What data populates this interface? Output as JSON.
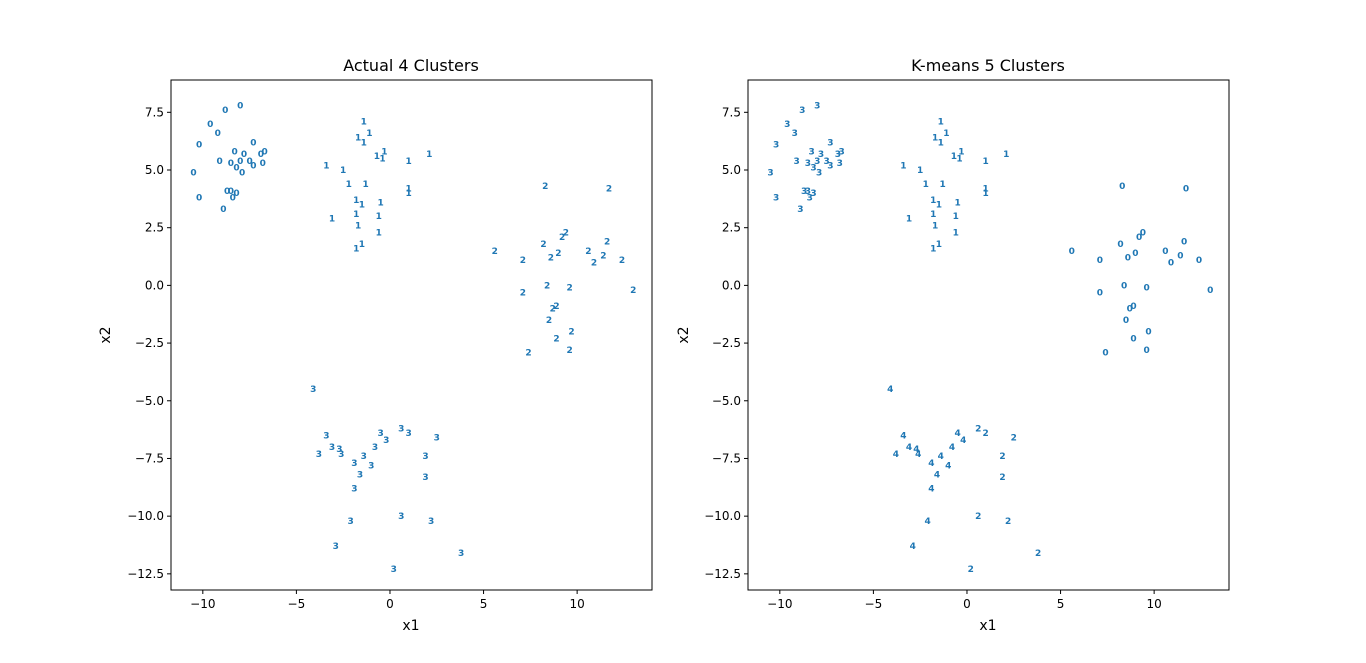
{
  "chart_data": [
    {
      "type": "scatter",
      "title": "Actual 4 Clusters",
      "xlabel": "x1",
      "ylabel": "x2",
      "xlim": [
        -11.7,
        14.0
      ],
      "ylim": [
        -13.2,
        8.9
      ],
      "xticks": [
        -10,
        -5,
        0,
        5,
        10
      ],
      "yticks": [
        7.5,
        5.0,
        2.5,
        0.0,
        -2.5,
        -5.0,
        -7.5,
        -10.0,
        -12.5
      ],
      "xtick_labels": [
        "−10",
        "−5",
        "0",
        "5",
        "10"
      ],
      "ytick_labels": [
        "7.5",
        "5.0",
        "2.5",
        "0.0",
        "−2.5",
        "−5.0",
        "−7.5",
        "−10.0",
        "−12.5"
      ],
      "marker_color": "#1f77b4",
      "points": [
        {
          "x": -8.0,
          "y": 7.8,
          "label": "0"
        },
        {
          "x": -8.8,
          "y": 7.6,
          "label": "0"
        },
        {
          "x": -9.6,
          "y": 7.0,
          "label": "0"
        },
        {
          "x": -9.2,
          "y": 6.6,
          "label": "0"
        },
        {
          "x": -7.3,
          "y": 6.2,
          "label": "0"
        },
        {
          "x": -10.2,
          "y": 6.1,
          "label": "0"
        },
        {
          "x": -8.3,
          "y": 5.8,
          "label": "0"
        },
        {
          "x": -7.8,
          "y": 5.7,
          "label": "0"
        },
        {
          "x": -6.7,
          "y": 5.8,
          "label": "0"
        },
        {
          "x": -6.9,
          "y": 5.7,
          "label": "0"
        },
        {
          "x": -9.1,
          "y": 5.4,
          "label": "0"
        },
        {
          "x": -8.5,
          "y": 5.3,
          "label": "0"
        },
        {
          "x": -8.0,
          "y": 5.4,
          "label": "0"
        },
        {
          "x": -7.5,
          "y": 5.4,
          "label": "0"
        },
        {
          "x": -7.3,
          "y": 5.2,
          "label": "0"
        },
        {
          "x": -6.8,
          "y": 5.3,
          "label": "0"
        },
        {
          "x": -8.2,
          "y": 5.1,
          "label": "0"
        },
        {
          "x": -7.9,
          "y": 4.9,
          "label": "0"
        },
        {
          "x": -10.5,
          "y": 4.9,
          "label": "0"
        },
        {
          "x": -8.7,
          "y": 4.1,
          "label": "0"
        },
        {
          "x": -8.5,
          "y": 4.1,
          "label": "0"
        },
        {
          "x": -8.2,
          "y": 4.0,
          "label": "0"
        },
        {
          "x": -8.4,
          "y": 3.8,
          "label": "0"
        },
        {
          "x": -10.2,
          "y": 3.8,
          "label": "0"
        },
        {
          "x": -8.9,
          "y": 3.3,
          "label": "0"
        },
        {
          "x": -1.4,
          "y": 7.1,
          "label": "1"
        },
        {
          "x": -1.1,
          "y": 6.6,
          "label": "1"
        },
        {
          "x": -1.7,
          "y": 6.4,
          "label": "1"
        },
        {
          "x": -1.4,
          "y": 6.2,
          "label": "1"
        },
        {
          "x": -0.3,
          "y": 5.8,
          "label": "1"
        },
        {
          "x": 2.1,
          "y": 5.7,
          "label": "1"
        },
        {
          "x": -0.7,
          "y": 5.6,
          "label": "1"
        },
        {
          "x": -0.4,
          "y": 5.5,
          "label": "1"
        },
        {
          "x": 1.0,
          "y": 5.4,
          "label": "1"
        },
        {
          "x": -3.4,
          "y": 5.2,
          "label": "1"
        },
        {
          "x": -2.5,
          "y": 5.0,
          "label": "1"
        },
        {
          "x": -2.2,
          "y": 4.4,
          "label": "1"
        },
        {
          "x": -1.3,
          "y": 4.4,
          "label": "1"
        },
        {
          "x": 1.0,
          "y": 4.2,
          "label": "1"
        },
        {
          "x": 1.0,
          "y": 4.0,
          "label": "1"
        },
        {
          "x": -1.8,
          "y": 3.7,
          "label": "1"
        },
        {
          "x": -1.5,
          "y": 3.5,
          "label": "1"
        },
        {
          "x": -0.5,
          "y": 3.6,
          "label": "1"
        },
        {
          "x": -1.8,
          "y": 3.1,
          "label": "1"
        },
        {
          "x": -0.6,
          "y": 3.0,
          "label": "1"
        },
        {
          "x": -3.1,
          "y": 2.9,
          "label": "1"
        },
        {
          "x": -1.7,
          "y": 2.6,
          "label": "1"
        },
        {
          "x": -0.6,
          "y": 2.3,
          "label": "1"
        },
        {
          "x": -1.5,
          "y": 1.8,
          "label": "1"
        },
        {
          "x": -1.8,
          "y": 1.6,
          "label": "1"
        },
        {
          "x": 8.3,
          "y": 4.3,
          "label": "2"
        },
        {
          "x": 11.7,
          "y": 4.2,
          "label": "2"
        },
        {
          "x": 9.4,
          "y": 2.3,
          "label": "2"
        },
        {
          "x": 9.2,
          "y": 2.1,
          "label": "2"
        },
        {
          "x": 11.6,
          "y": 1.9,
          "label": "2"
        },
        {
          "x": 8.2,
          "y": 1.8,
          "label": "2"
        },
        {
          "x": 5.6,
          "y": 1.5,
          "label": "2"
        },
        {
          "x": 10.6,
          "y": 1.5,
          "label": "2"
        },
        {
          "x": 9.0,
          "y": 1.4,
          "label": "2"
        },
        {
          "x": 11.4,
          "y": 1.3,
          "label": "2"
        },
        {
          "x": 8.6,
          "y": 1.2,
          "label": "2"
        },
        {
          "x": 7.1,
          "y": 1.1,
          "label": "2"
        },
        {
          "x": 10.9,
          "y": 1.0,
          "label": "2"
        },
        {
          "x": 12.4,
          "y": 1.1,
          "label": "2"
        },
        {
          "x": 8.4,
          "y": 0.0,
          "label": "2"
        },
        {
          "x": 9.6,
          "y": -0.1,
          "label": "2"
        },
        {
          "x": 13.0,
          "y": -0.2,
          "label": "2"
        },
        {
          "x": 7.1,
          "y": -0.3,
          "label": "2"
        },
        {
          "x": 8.9,
          "y": -0.9,
          "label": "2"
        },
        {
          "x": 8.7,
          "y": -1.0,
          "label": "2"
        },
        {
          "x": 8.5,
          "y": -1.5,
          "label": "2"
        },
        {
          "x": 9.7,
          "y": -2.0,
          "label": "2"
        },
        {
          "x": 8.9,
          "y": -2.3,
          "label": "2"
        },
        {
          "x": 9.6,
          "y": -2.8,
          "label": "2"
        },
        {
          "x": 7.4,
          "y": -2.9,
          "label": "2"
        },
        {
          "x": -4.1,
          "y": -4.5,
          "label": "3"
        },
        {
          "x": 0.6,
          "y": -6.2,
          "label": "3"
        },
        {
          "x": -0.5,
          "y": -6.4,
          "label": "3"
        },
        {
          "x": 1.0,
          "y": -6.4,
          "label": "3"
        },
        {
          "x": -3.4,
          "y": -6.5,
          "label": "3"
        },
        {
          "x": -0.2,
          "y": -6.7,
          "label": "3"
        },
        {
          "x": 2.5,
          "y": -6.6,
          "label": "3"
        },
        {
          "x": -0.8,
          "y": -7.0,
          "label": "3"
        },
        {
          "x": -3.1,
          "y": -7.0,
          "label": "3"
        },
        {
          "x": -2.7,
          "y": -7.1,
          "label": "3"
        },
        {
          "x": -2.6,
          "y": -7.3,
          "label": "3"
        },
        {
          "x": -3.8,
          "y": -7.3,
          "label": "3"
        },
        {
          "x": -1.4,
          "y": -7.4,
          "label": "3"
        },
        {
          "x": 1.9,
          "y": -7.4,
          "label": "3"
        },
        {
          "x": -1.9,
          "y": -7.7,
          "label": "3"
        },
        {
          "x": -1.0,
          "y": -7.8,
          "label": "3"
        },
        {
          "x": -1.6,
          "y": -8.2,
          "label": "3"
        },
        {
          "x": 1.9,
          "y": -8.3,
          "label": "3"
        },
        {
          "x": -1.9,
          "y": -8.8,
          "label": "3"
        },
        {
          "x": 0.6,
          "y": -10.0,
          "label": "3"
        },
        {
          "x": 2.2,
          "y": -10.2,
          "label": "3"
        },
        {
          "x": -2.1,
          "y": -10.2,
          "label": "3"
        },
        {
          "x": -2.9,
          "y": -11.3,
          "label": "3"
        },
        {
          "x": 3.8,
          "y": -11.6,
          "label": "3"
        },
        {
          "x": 0.2,
          "y": -12.3,
          "label": "3"
        }
      ]
    },
    {
      "type": "scatter",
      "title": "K-means 5 Clusters",
      "xlabel": "x1",
      "ylabel": "x2",
      "xlim": [
        -11.7,
        14.0
      ],
      "ylim": [
        -13.2,
        8.9
      ],
      "xticks": [
        -10,
        -5,
        0,
        5,
        10
      ],
      "yticks": [
        7.5,
        5.0,
        2.5,
        0.0,
        -2.5,
        -5.0,
        -7.5,
        -10.0,
        -12.5
      ],
      "xtick_labels": [
        "−10",
        "−5",
        "0",
        "5",
        "10"
      ],
      "ytick_labels": [
        "7.5",
        "5.0",
        "2.5",
        "0.0",
        "−2.5",
        "−5.0",
        "−7.5",
        "−10.0",
        "−12.5"
      ],
      "marker_color": "#1f77b4",
      "points": [
        {
          "x": -8.0,
          "y": 7.8,
          "label": "3"
        },
        {
          "x": -8.8,
          "y": 7.6,
          "label": "3"
        },
        {
          "x": -9.6,
          "y": 7.0,
          "label": "3"
        },
        {
          "x": -9.2,
          "y": 6.6,
          "label": "3"
        },
        {
          "x": -7.3,
          "y": 6.2,
          "label": "3"
        },
        {
          "x": -10.2,
          "y": 6.1,
          "label": "3"
        },
        {
          "x": -8.3,
          "y": 5.8,
          "label": "3"
        },
        {
          "x": -7.8,
          "y": 5.7,
          "label": "3"
        },
        {
          "x": -6.7,
          "y": 5.8,
          "label": "3"
        },
        {
          "x": -6.9,
          "y": 5.7,
          "label": "3"
        },
        {
          "x": -9.1,
          "y": 5.4,
          "label": "3"
        },
        {
          "x": -8.5,
          "y": 5.3,
          "label": "3"
        },
        {
          "x": -8.0,
          "y": 5.4,
          "label": "3"
        },
        {
          "x": -7.5,
          "y": 5.4,
          "label": "3"
        },
        {
          "x": -7.3,
          "y": 5.2,
          "label": "3"
        },
        {
          "x": -6.8,
          "y": 5.3,
          "label": "3"
        },
        {
          "x": -8.2,
          "y": 5.1,
          "label": "3"
        },
        {
          "x": -7.9,
          "y": 4.9,
          "label": "3"
        },
        {
          "x": -10.5,
          "y": 4.9,
          "label": "3"
        },
        {
          "x": -8.7,
          "y": 4.1,
          "label": "3"
        },
        {
          "x": -8.5,
          "y": 4.1,
          "label": "3"
        },
        {
          "x": -8.2,
          "y": 4.0,
          "label": "3"
        },
        {
          "x": -8.4,
          "y": 3.8,
          "label": "3"
        },
        {
          "x": -10.2,
          "y": 3.8,
          "label": "3"
        },
        {
          "x": -8.9,
          "y": 3.3,
          "label": "3"
        },
        {
          "x": -1.4,
          "y": 7.1,
          "label": "1"
        },
        {
          "x": -1.1,
          "y": 6.6,
          "label": "1"
        },
        {
          "x": -1.7,
          "y": 6.4,
          "label": "1"
        },
        {
          "x": -1.4,
          "y": 6.2,
          "label": "1"
        },
        {
          "x": -0.3,
          "y": 5.8,
          "label": "1"
        },
        {
          "x": 2.1,
          "y": 5.7,
          "label": "1"
        },
        {
          "x": -0.7,
          "y": 5.6,
          "label": "1"
        },
        {
          "x": -0.4,
          "y": 5.5,
          "label": "1"
        },
        {
          "x": 1.0,
          "y": 5.4,
          "label": "1"
        },
        {
          "x": -3.4,
          "y": 5.2,
          "label": "1"
        },
        {
          "x": -2.5,
          "y": 5.0,
          "label": "1"
        },
        {
          "x": -2.2,
          "y": 4.4,
          "label": "1"
        },
        {
          "x": -1.3,
          "y": 4.4,
          "label": "1"
        },
        {
          "x": 1.0,
          "y": 4.2,
          "label": "1"
        },
        {
          "x": 1.0,
          "y": 4.0,
          "label": "1"
        },
        {
          "x": -1.8,
          "y": 3.7,
          "label": "1"
        },
        {
          "x": -1.5,
          "y": 3.5,
          "label": "1"
        },
        {
          "x": -0.5,
          "y": 3.6,
          "label": "1"
        },
        {
          "x": -1.8,
          "y": 3.1,
          "label": "1"
        },
        {
          "x": -0.6,
          "y": 3.0,
          "label": "1"
        },
        {
          "x": -3.1,
          "y": 2.9,
          "label": "1"
        },
        {
          "x": -1.7,
          "y": 2.6,
          "label": "1"
        },
        {
          "x": -0.6,
          "y": 2.3,
          "label": "1"
        },
        {
          "x": -1.5,
          "y": 1.8,
          "label": "1"
        },
        {
          "x": -1.8,
          "y": 1.6,
          "label": "1"
        },
        {
          "x": 8.3,
          "y": 4.3,
          "label": "0"
        },
        {
          "x": 11.7,
          "y": 4.2,
          "label": "0"
        },
        {
          "x": 9.4,
          "y": 2.3,
          "label": "0"
        },
        {
          "x": 9.2,
          "y": 2.1,
          "label": "0"
        },
        {
          "x": 11.6,
          "y": 1.9,
          "label": "0"
        },
        {
          "x": 8.2,
          "y": 1.8,
          "label": "0"
        },
        {
          "x": 5.6,
          "y": 1.5,
          "label": "0"
        },
        {
          "x": 10.6,
          "y": 1.5,
          "label": "0"
        },
        {
          "x": 9.0,
          "y": 1.4,
          "label": "0"
        },
        {
          "x": 11.4,
          "y": 1.3,
          "label": "0"
        },
        {
          "x": 8.6,
          "y": 1.2,
          "label": "0"
        },
        {
          "x": 7.1,
          "y": 1.1,
          "label": "0"
        },
        {
          "x": 10.9,
          "y": 1.0,
          "label": "0"
        },
        {
          "x": 12.4,
          "y": 1.1,
          "label": "0"
        },
        {
          "x": 8.4,
          "y": 0.0,
          "label": "0"
        },
        {
          "x": 9.6,
          "y": -0.1,
          "label": "0"
        },
        {
          "x": 13.0,
          "y": -0.2,
          "label": "0"
        },
        {
          "x": 7.1,
          "y": -0.3,
          "label": "0"
        },
        {
          "x": 8.9,
          "y": -0.9,
          "label": "0"
        },
        {
          "x": 8.7,
          "y": -1.0,
          "label": "0"
        },
        {
          "x": 8.5,
          "y": -1.5,
          "label": "0"
        },
        {
          "x": 9.7,
          "y": -2.0,
          "label": "0"
        },
        {
          "x": 8.9,
          "y": -2.3,
          "label": "0"
        },
        {
          "x": 9.6,
          "y": -2.8,
          "label": "0"
        },
        {
          "x": 7.4,
          "y": -2.9,
          "label": "0"
        },
        {
          "x": -4.1,
          "y": -4.5,
          "label": "4"
        },
        {
          "x": 0.6,
          "y": -6.2,
          "label": "2"
        },
        {
          "x": -0.5,
          "y": -6.4,
          "label": "4"
        },
        {
          "x": 1.0,
          "y": -6.4,
          "label": "2"
        },
        {
          "x": -3.4,
          "y": -6.5,
          "label": "4"
        },
        {
          "x": -0.2,
          "y": -6.7,
          "label": "4"
        },
        {
          "x": 2.5,
          "y": -6.6,
          "label": "2"
        },
        {
          "x": -0.8,
          "y": -7.0,
          "label": "4"
        },
        {
          "x": -3.1,
          "y": -7.0,
          "label": "4"
        },
        {
          "x": -2.7,
          "y": -7.1,
          "label": "4"
        },
        {
          "x": -2.6,
          "y": -7.3,
          "label": "4"
        },
        {
          "x": -3.8,
          "y": -7.3,
          "label": "4"
        },
        {
          "x": -1.4,
          "y": -7.4,
          "label": "4"
        },
        {
          "x": 1.9,
          "y": -7.4,
          "label": "2"
        },
        {
          "x": -1.9,
          "y": -7.7,
          "label": "4"
        },
        {
          "x": -1.0,
          "y": -7.8,
          "label": "4"
        },
        {
          "x": -1.6,
          "y": -8.2,
          "label": "4"
        },
        {
          "x": 1.9,
          "y": -8.3,
          "label": "2"
        },
        {
          "x": -1.9,
          "y": -8.8,
          "label": "4"
        },
        {
          "x": 0.6,
          "y": -10.0,
          "label": "2"
        },
        {
          "x": 2.2,
          "y": -10.2,
          "label": "2"
        },
        {
          "x": -2.1,
          "y": -10.2,
          "label": "4"
        },
        {
          "x": -2.9,
          "y": -11.3,
          "label": "4"
        },
        {
          "x": 3.8,
          "y": -11.6,
          "label": "2"
        },
        {
          "x": 0.2,
          "y": -12.3,
          "label": "2"
        }
      ]
    }
  ]
}
